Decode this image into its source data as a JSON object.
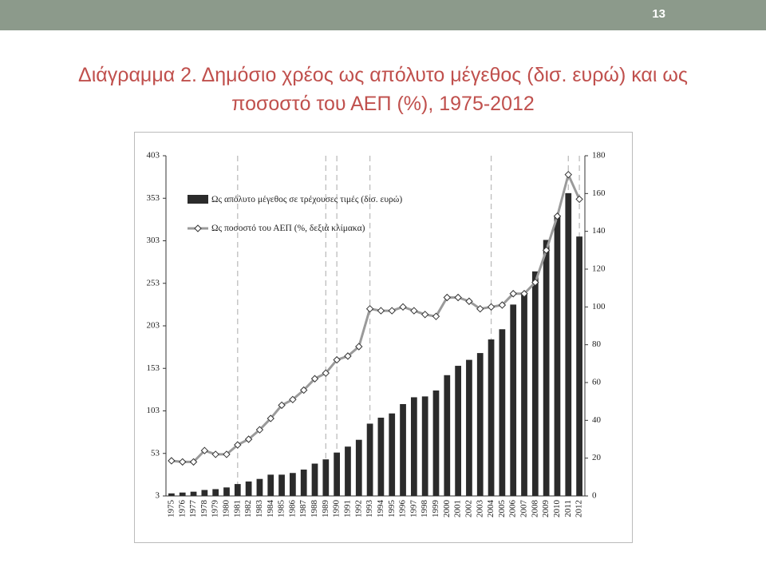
{
  "slide_number": "13",
  "title": "Διάγραμμα 2. Δημόσιο χρέος ως απόλυτο μέγεθος (δισ. ευρώ) και ως ποσοστό του ΑΕΠ (%), 1975-2012",
  "chart_data": {
    "type": "bar",
    "categories": [
      "1975",
      "1976",
      "1977",
      "1978",
      "1979",
      "1980",
      "1981",
      "1982",
      "1983",
      "1984",
      "1985",
      "1986",
      "1987",
      "1988",
      "1989",
      "1990",
      "1991",
      "1992",
      "1993",
      "1994",
      "1995",
      "1996",
      "1997",
      "1998",
      "1999",
      "2000",
      "2001",
      "2002",
      "2003",
      "2004",
      "2005",
      "2006",
      "2007",
      "2008",
      "2009",
      "2010",
      "2011",
      "2012"
    ],
    "series": [
      {
        "name": "Ως απόλυτο μέγεθος σε τρέχουσες τιμές (δισ. ευρώ)",
        "type": "bar",
        "color": "#2b2b2b",
        "values": [
          6,
          7,
          8,
          10,
          11,
          13,
          17,
          20,
          23,
          28,
          28,
          30,
          34,
          41,
          46,
          54,
          61,
          69,
          88,
          95,
          100,
          111,
          119,
          120,
          127,
          145,
          156,
          163,
          171,
          187,
          199,
          228,
          241,
          267,
          304,
          333,
          359,
          308
        ]
      },
      {
        "name": "Ως ποσοστό του ΑΕΠ (%, δεξιά κλίμακα)",
        "type": "line",
        "axis": "y2",
        "color": "#9a9a9a",
        "values": [
          18.6,
          18,
          18,
          24,
          22,
          22,
          27,
          30,
          35,
          41,
          48,
          51,
          56,
          62,
          65,
          72,
          74,
          79,
          99,
          98,
          98,
          100,
          98,
          96,
          95,
          105,
          105,
          103,
          99,
          100,
          101,
          107,
          107,
          113,
          130,
          148,
          170,
          157
        ]
      }
    ],
    "ylim": [
      3,
      403
    ],
    "yticks": [
      3,
      53,
      103,
      153,
      203,
      253,
      303,
      353,
      403
    ],
    "y2lim": [
      0,
      180
    ],
    "y2ticks": [
      0,
      20,
      40,
      60,
      80,
      100,
      120,
      140,
      160,
      180
    ],
    "vertical_lines": [
      "1981",
      "1989",
      "1990",
      "1993",
      "2004",
      "2011",
      "2012"
    ],
    "grid": false,
    "legend": "upper left"
  }
}
